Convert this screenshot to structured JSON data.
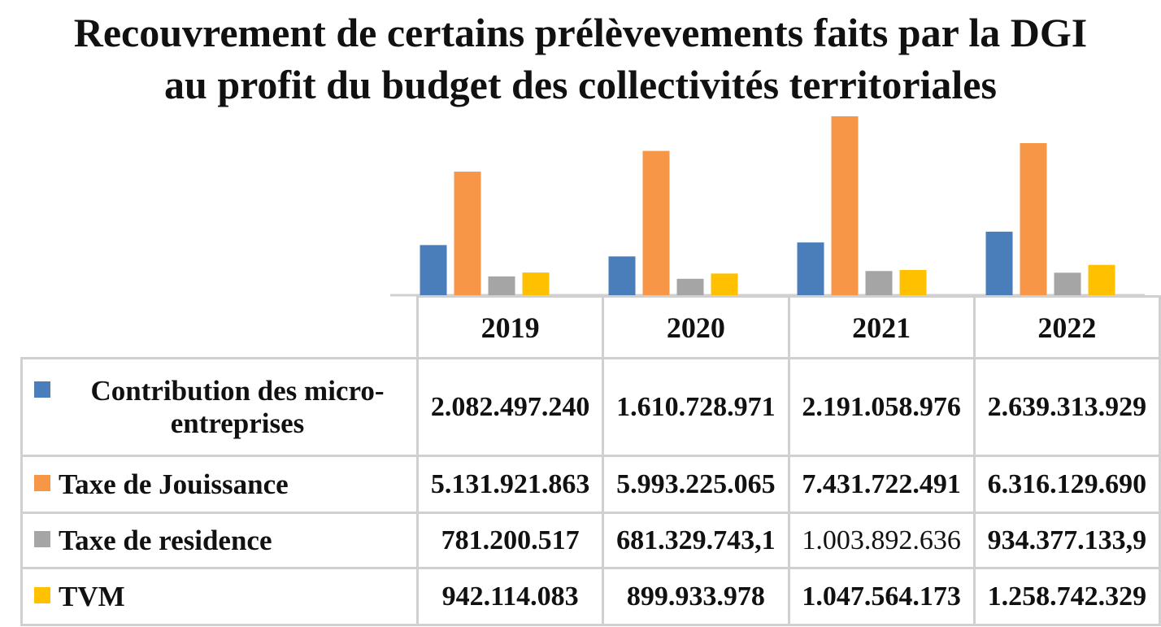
{
  "chart_data": {
    "type": "bar",
    "title": [
      "Recouvrement de certains prélèvevements faits par la DGI",
      "au profit du budget des collectivités territoriales"
    ],
    "categories": [
      "2019",
      "2020",
      "2021",
      "2022"
    ],
    "series": [
      {
        "name": "Contribution des micro-entreprises",
        "name_lines": [
          "Contribution des micro-",
          "entreprises"
        ],
        "color": "#4a7ebb",
        "values": [
          2082497240,
          1610728971,
          2191058976,
          2639313929
        ],
        "labels": [
          "2.082.497.240",
          "1.610.728.971",
          "2.191.058.976",
          "2.639.313.929"
        ]
      },
      {
        "name": "Taxe de Jouissance",
        "color": "#f79646",
        "values": [
          5131921863,
          5993225065,
          7431722491,
          6316129690
        ],
        "labels": [
          "5.131.921.863",
          "5.993.225.065",
          "7.431.722.491",
          "6.316.129.690"
        ]
      },
      {
        "name": "Taxe de residence",
        "color": "#a5a5a5",
        "values": [
          781200517,
          681329743.1,
          1003892636,
          934377133.9
        ],
        "labels": [
          "781.200.517",
          "681.329.743,1",
          "1.003.892.636",
          "934.377.133,9"
        ]
      },
      {
        "name": "TVM",
        "color": "#ffc000",
        "values": [
          942114083,
          899933978,
          1047564173,
          1258742329
        ],
        "labels": [
          "942.114.083",
          "899.933.978",
          "1.047.564.173",
          "1.258.742.329"
        ]
      }
    ],
    "xlabel": "",
    "ylabel": "",
    "legend": "data-table",
    "grid": false
  }
}
